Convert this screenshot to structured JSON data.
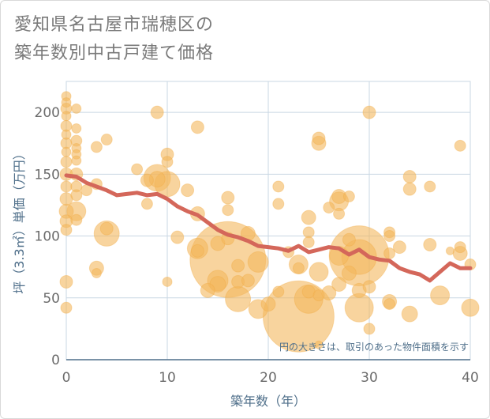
{
  "chart_data": {
    "type": "scatter",
    "title_lines": [
      "愛知県名古屋市瑞穂区の",
      "築年数別中古戸建て価格"
    ],
    "xlabel": "築年数（年）",
    "ylabel": "坪（3.3㎡）単価（万円）",
    "note": "円の大きさは、取引のあった物件面積を示す",
    "xlim": [
      0,
      40
    ],
    "ylim": [
      0,
      225
    ],
    "x_ticks": [
      0,
      10,
      20,
      30,
      40
    ],
    "y_ticks": [
      0,
      50,
      100,
      150,
      200
    ],
    "grid": true,
    "colors": {
      "bubble": "#f4b75e",
      "trend": "#d4675a",
      "grid": "#c9d7e3",
      "axis": "#4f6f8a"
    },
    "series": [
      {
        "kind": "bubble",
        "points": [
          {
            "x": 0,
            "y": 213,
            "s": 6
          },
          {
            "x": 0,
            "y": 208,
            "s": 6
          },
          {
            "x": 0,
            "y": 203,
            "s": 7
          },
          {
            "x": 0,
            "y": 197,
            "s": 6
          },
          {
            "x": 0,
            "y": 189,
            "s": 7
          },
          {
            "x": 0,
            "y": 182,
            "s": 6
          },
          {
            "x": 0,
            "y": 175,
            "s": 7
          },
          {
            "x": 0,
            "y": 168,
            "s": 6
          },
          {
            "x": 0,
            "y": 160,
            "s": 7
          },
          {
            "x": 0,
            "y": 150,
            "s": 8
          },
          {
            "x": 0,
            "y": 140,
            "s": 7
          },
          {
            "x": 0,
            "y": 130,
            "s": 8
          },
          {
            "x": 0,
            "y": 120,
            "s": 9
          },
          {
            "x": 0,
            "y": 112,
            "s": 8
          },
          {
            "x": 0,
            "y": 105,
            "s": 7
          },
          {
            "x": 0,
            "y": 63,
            "s": 8
          },
          {
            "x": 0,
            "y": 42,
            "s": 7
          },
          {
            "x": 1,
            "y": 203,
            "s": 6
          },
          {
            "x": 1,
            "y": 187,
            "s": 6
          },
          {
            "x": 1,
            "y": 177,
            "s": 7
          },
          {
            "x": 1,
            "y": 171,
            "s": 6
          },
          {
            "x": 1,
            "y": 166,
            "s": 6
          },
          {
            "x": 1,
            "y": 161,
            "s": 6
          },
          {
            "x": 1,
            "y": 150,
            "s": 8
          },
          {
            "x": 1,
            "y": 140,
            "s": 7
          },
          {
            "x": 1,
            "y": 133,
            "s": 7
          },
          {
            "x": 1,
            "y": 120,
            "s": 12
          },
          {
            "x": 1,
            "y": 113,
            "s": 7
          },
          {
            "x": 2,
            "y": 137,
            "s": 7
          },
          {
            "x": 3,
            "y": 172,
            "s": 7
          },
          {
            "x": 3,
            "y": 142,
            "s": 7
          },
          {
            "x": 3,
            "y": 74,
            "s": 9
          },
          {
            "x": 3,
            "y": 70,
            "s": 6
          },
          {
            "x": 4,
            "y": 178,
            "s": 7
          },
          {
            "x": 4,
            "y": 106,
            "s": 8
          },
          {
            "x": 4,
            "y": 102,
            "s": 16
          },
          {
            "x": 7,
            "y": 154,
            "s": 7
          },
          {
            "x": 8,
            "y": 145,
            "s": 8
          },
          {
            "x": 8,
            "y": 126,
            "s": 7
          },
          {
            "x": 9,
            "y": 200,
            "s": 8
          },
          {
            "x": 9,
            "y": 147,
            "s": 17
          },
          {
            "x": 9,
            "y": 146,
            "s": 10
          },
          {
            "x": 10,
            "y": 166,
            "s": 8
          },
          {
            "x": 10,
            "y": 160,
            "s": 7
          },
          {
            "x": 10,
            "y": 142,
            "s": 16
          },
          {
            "x": 10,
            "y": 63,
            "s": 6
          },
          {
            "x": 11,
            "y": 99,
            "s": 8
          },
          {
            "x": 12,
            "y": 137,
            "s": 8
          },
          {
            "x": 13,
            "y": 188,
            "s": 8
          },
          {
            "x": 13,
            "y": 118,
            "s": 9
          },
          {
            "x": 13,
            "y": 90,
            "s": 13
          },
          {
            "x": 13,
            "y": 88,
            "s": 8
          },
          {
            "x": 14,
            "y": 56,
            "s": 9
          },
          {
            "x": 15,
            "y": 94,
            "s": 9
          },
          {
            "x": 15,
            "y": 64,
            "s": 13
          },
          {
            "x": 15,
            "y": 61,
            "s": 10
          },
          {
            "x": 16,
            "y": 131,
            "s": 8
          },
          {
            "x": 16,
            "y": 121,
            "s": 7
          },
          {
            "x": 16,
            "y": 98,
            "s": 8
          },
          {
            "x": 16,
            "y": 81,
            "s": 48
          },
          {
            "x": 17,
            "y": 76,
            "s": 8
          },
          {
            "x": 17,
            "y": 63,
            "s": 8
          },
          {
            "x": 17,
            "y": 49,
            "s": 16
          },
          {
            "x": 18,
            "y": 102,
            "s": 9
          },
          {
            "x": 18,
            "y": 64,
            "s": 8
          },
          {
            "x": 19,
            "y": 79,
            "s": 13
          },
          {
            "x": 19,
            "y": 41,
            "s": 12
          },
          {
            "x": 20,
            "y": 45,
            "s": 9
          },
          {
            "x": 21,
            "y": 140,
            "s": 7
          },
          {
            "x": 21,
            "y": 126,
            "s": 7
          },
          {
            "x": 21,
            "y": 55,
            "s": 7
          },
          {
            "x": 22,
            "y": 87,
            "s": 7
          },
          {
            "x": 23,
            "y": 35,
            "s": 45
          },
          {
            "x": 23,
            "y": 77,
            "s": 12
          },
          {
            "x": 23,
            "y": 74,
            "s": 7
          },
          {
            "x": 24,
            "y": 115,
            "s": 9
          },
          {
            "x": 24,
            "y": 103,
            "s": 7
          },
          {
            "x": 24,
            "y": 95,
            "s": 7
          },
          {
            "x": 24,
            "y": 49,
            "s": 18
          },
          {
            "x": 24,
            "y": 55,
            "s": 8
          },
          {
            "x": 25,
            "y": 179,
            "s": 8
          },
          {
            "x": 25,
            "y": 175,
            "s": 9
          },
          {
            "x": 25,
            "y": 71,
            "s": 12
          },
          {
            "x": 25,
            "y": 52,
            "s": 7
          },
          {
            "x": 25,
            "y": 12,
            "s": 5
          },
          {
            "x": 26,
            "y": 123,
            "s": 7
          },
          {
            "x": 26,
            "y": 54,
            "s": 9
          },
          {
            "x": 27,
            "y": 132,
            "s": 9
          },
          {
            "x": 27,
            "y": 128,
            "s": 12
          },
          {
            "x": 27,
            "y": 118,
            "s": 7
          },
          {
            "x": 27,
            "y": 84,
            "s": 12
          },
          {
            "x": 27,
            "y": 61,
            "s": 9
          },
          {
            "x": 28,
            "y": 132,
            "s": 7
          },
          {
            "x": 28,
            "y": 97,
            "s": 8
          },
          {
            "x": 28,
            "y": 70,
            "s": 9
          },
          {
            "x": 29,
            "y": 84,
            "s": 38
          },
          {
            "x": 29,
            "y": 83,
            "s": 22
          },
          {
            "x": 29,
            "y": 42,
            "s": 18
          },
          {
            "x": 29,
            "y": 56,
            "s": 9
          },
          {
            "x": 30,
            "y": 200,
            "s": 8
          },
          {
            "x": 30,
            "y": 59,
            "s": 8
          },
          {
            "x": 30,
            "y": 25,
            "s": 7
          },
          {
            "x": 32,
            "y": 103,
            "s": 7
          },
          {
            "x": 32,
            "y": 100,
            "s": 7
          },
          {
            "x": 32,
            "y": 86,
            "s": 7
          },
          {
            "x": 32,
            "y": 47,
            "s": 9
          },
          {
            "x": 32,
            "y": 45,
            "s": 7
          },
          {
            "x": 33,
            "y": 91,
            "s": 8
          },
          {
            "x": 34,
            "y": 148,
            "s": 8
          },
          {
            "x": 34,
            "y": 138,
            "s": 8
          },
          {
            "x": 34,
            "y": 37,
            "s": 10
          },
          {
            "x": 36,
            "y": 140,
            "s": 7
          },
          {
            "x": 36,
            "y": 93,
            "s": 8
          },
          {
            "x": 37,
            "y": 52,
            "s": 12
          },
          {
            "x": 38,
            "y": 88,
            "s": 5
          },
          {
            "x": 39,
            "y": 173,
            "s": 7
          },
          {
            "x": 39,
            "y": 91,
            "s": 7
          },
          {
            "x": 39,
            "y": 86,
            "s": 9
          },
          {
            "x": 40,
            "y": 77,
            "s": 7
          },
          {
            "x": 40,
            "y": 42,
            "s": 11
          }
        ]
      },
      {
        "kind": "line",
        "points": [
          {
            "x": 0,
            "y": 149
          },
          {
            "x": 1,
            "y": 148
          },
          {
            "x": 2,
            "y": 143
          },
          {
            "x": 3,
            "y": 140
          },
          {
            "x": 4,
            "y": 137
          },
          {
            "x": 5,
            "y": 133
          },
          {
            "x": 6,
            "y": 134
          },
          {
            "x": 7,
            "y": 135
          },
          {
            "x": 8,
            "y": 133
          },
          {
            "x": 9,
            "y": 134
          },
          {
            "x": 10,
            "y": 130
          },
          {
            "x": 11,
            "y": 124
          },
          {
            "x": 12,
            "y": 120
          },
          {
            "x": 13,
            "y": 117
          },
          {
            "x": 14,
            "y": 111
          },
          {
            "x": 15,
            "y": 105
          },
          {
            "x": 16,
            "y": 101
          },
          {
            "x": 17,
            "y": 99
          },
          {
            "x": 18,
            "y": 96
          },
          {
            "x": 19,
            "y": 92
          },
          {
            "x": 20,
            "y": 91
          },
          {
            "x": 21,
            "y": 90
          },
          {
            "x": 22,
            "y": 88
          },
          {
            "x": 23,
            "y": 92
          },
          {
            "x": 24,
            "y": 87
          },
          {
            "x": 25,
            "y": 89
          },
          {
            "x": 26,
            "y": 91
          },
          {
            "x": 27,
            "y": 90
          },
          {
            "x": 28,
            "y": 85
          },
          {
            "x": 29,
            "y": 89
          },
          {
            "x": 30,
            "y": 83
          },
          {
            "x": 31,
            "y": 81
          },
          {
            "x": 32,
            "y": 80
          },
          {
            "x": 33,
            "y": 74
          },
          {
            "x": 34,
            "y": 71
          },
          {
            "x": 35,
            "y": 69
          },
          {
            "x": 36,
            "y": 64
          },
          {
            "x": 37,
            "y": 71
          },
          {
            "x": 38,
            "y": 78
          },
          {
            "x": 39,
            "y": 74
          },
          {
            "x": 40,
            "y": 74
          }
        ]
      }
    ]
  }
}
